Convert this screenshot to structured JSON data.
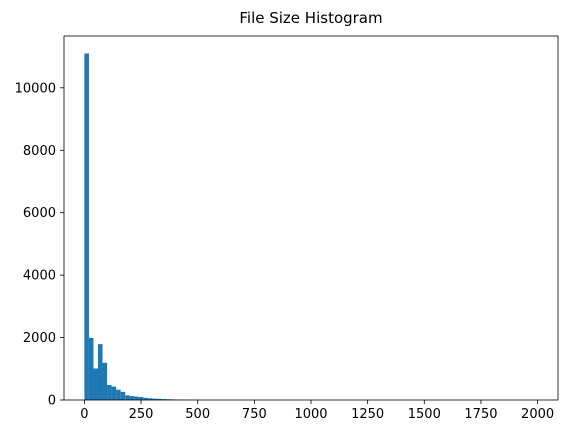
{
  "chart_data": {
    "type": "bar",
    "title": "File Size Histogram",
    "xlabel": "",
    "ylabel": "",
    "bin_width": 20,
    "bin_start": 0,
    "xlim": [
      -90,
      2090
    ],
    "ylim": [
      0,
      11660
    ],
    "xticks": [
      0,
      250,
      500,
      750,
      1000,
      1250,
      1500,
      1750,
      2000
    ],
    "xtick_labels": [
      "0",
      "250",
      "500",
      "750",
      "1000",
      "1250",
      "1500",
      "1750",
      "2000"
    ],
    "yticks": [
      0,
      2000,
      4000,
      6000,
      8000,
      10000
    ],
    "ytick_labels": [
      "0",
      "2000",
      "4000",
      "6000",
      "8000",
      "10000"
    ],
    "bar_color": "#1f77b4",
    "values": [
      11100,
      1990,
      1010,
      1790,
      1190,
      480,
      430,
      330,
      260,
      150,
      125,
      110,
      95,
      70,
      55,
      45,
      38,
      30,
      25,
      20,
      16,
      13,
      10,
      8,
      6,
      5,
      4,
      3,
      3,
      2
    ]
  }
}
